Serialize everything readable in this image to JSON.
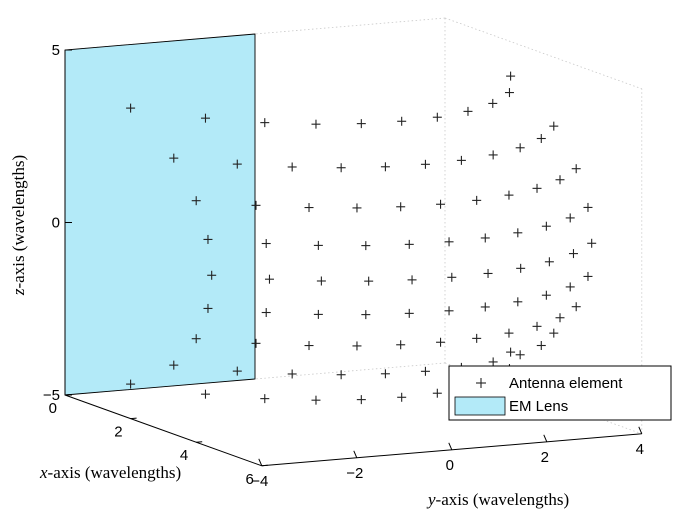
{
  "chart_data": {
    "type": "scatter3d",
    "xlabel_var": "x",
    "xlabel_rest": "-axis (wavelengths)",
    "ylabel_var": "y",
    "ylabel_rest": "-axis (wavelengths)",
    "zlabel_var": "z",
    "zlabel_rest": "-axis (wavelengths)",
    "x_ticks": [
      0,
      2,
      4,
      6
    ],
    "y_ticks": [
      -4,
      -2,
      0,
      2,
      4
    ],
    "z_ticks": [
      -5,
      0,
      5
    ],
    "x_tick_labels": [
      "0",
      "2",
      "4",
      "6"
    ],
    "y_tick_labels": [
      "−4",
      "−2",
      "0",
      "2",
      "4"
    ],
    "z_tick_labels": [
      "−5",
      "0",
      "5"
    ],
    "xlim": [
      0,
      6
    ],
    "ylim": [
      -4,
      4
    ],
    "zlim": [
      -5,
      5
    ],
    "grid": false,
    "legend_position": "bottom-right",
    "series": [
      {
        "name": "Antenna element",
        "marker": "+",
        "color": "#222222",
        "surface": "spherical cap of radius 6 wavelengths centred at the origin, spanning y from about -4 to 4 and z from about -4 to 4",
        "points_per_row": 11,
        "rows": 9
      }
    ],
    "lens": {
      "name": "EM Lens",
      "color": "#b3eaf8",
      "plane": "x = 0",
      "ylim": [
        -4,
        0
      ],
      "zlim": [
        -5,
        5
      ]
    }
  }
}
